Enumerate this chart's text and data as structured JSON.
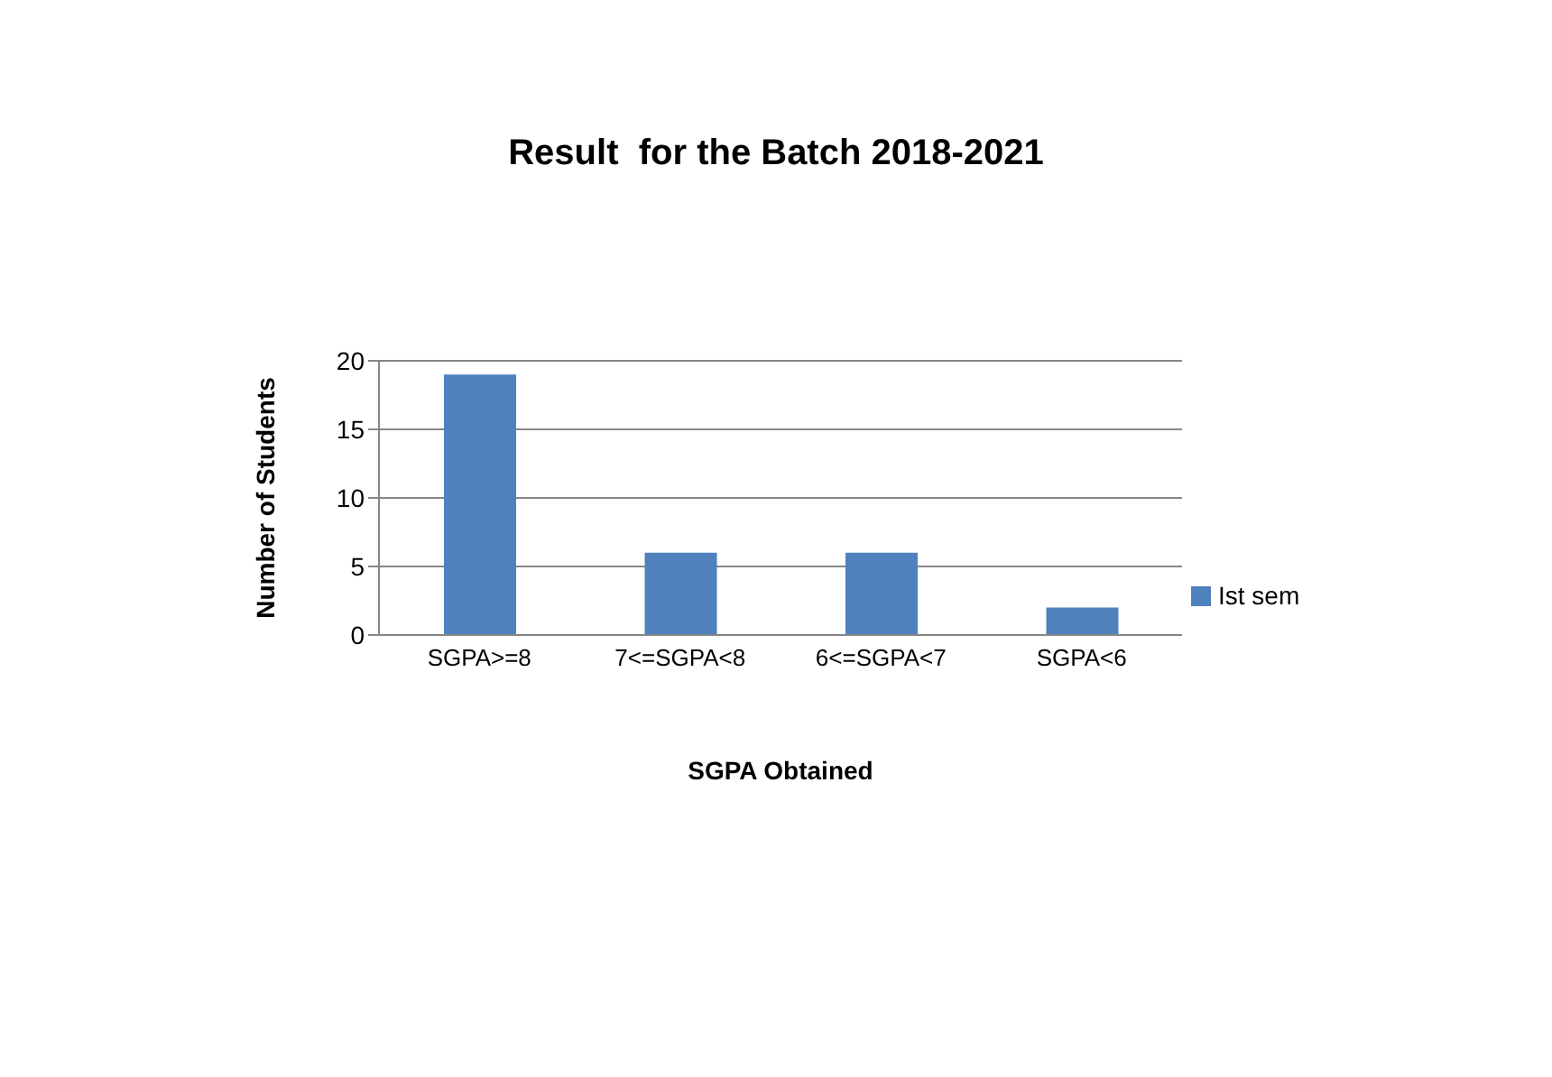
{
  "chart_data": {
    "type": "bar",
    "title": "Result  for the Batch 2018-2021",
    "xlabel": "SGPA Obtained",
    "ylabel": "Number of Students",
    "categories": [
      "SGPA>=8",
      "7<=SGPA<8",
      "6<=SGPA<7",
      "SGPA<6"
    ],
    "series": [
      {
        "name": "Ist sem",
        "color": "#4f81bd",
        "values": [
          19,
          6,
          6,
          2
        ]
      }
    ],
    "ylim": [
      0,
      20
    ],
    "yticks": [
      0,
      5,
      10,
      15,
      20
    ],
    "grid": "y",
    "legend": "right"
  }
}
